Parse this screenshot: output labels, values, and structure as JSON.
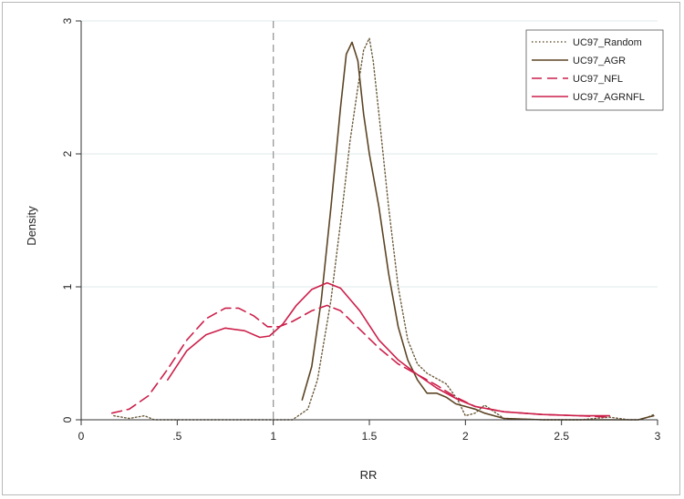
{
  "chart_data": {
    "type": "line",
    "xlabel": "RR",
    "ylabel": "Density",
    "xlim": [
      0,
      3
    ],
    "ylim": [
      0,
      3
    ],
    "x_ticks": [
      {
        "value": 0,
        "label": "0"
      },
      {
        "value": 0.5,
        "label": ".5"
      },
      {
        "value": 1,
        "label": "1"
      },
      {
        "value": 1.5,
        "label": "1.5"
      },
      {
        "value": 2,
        "label": "2"
      },
      {
        "value": 2.5,
        "label": "2.5"
      },
      {
        "value": 3,
        "label": "3"
      }
    ],
    "y_ticks": [
      {
        "value": 0,
        "label": "0"
      },
      {
        "value": 1,
        "label": "1"
      },
      {
        "value": 2,
        "label": "2"
      },
      {
        "value": 3,
        "label": "3"
      }
    ],
    "grid": "horizontal",
    "reference_line": {
      "x": 1,
      "style": "dashed",
      "color": "#999999"
    },
    "legend_position": "top-right",
    "series": [
      {
        "name": "UC97_Random",
        "color": "#6b5a3a",
        "style": "dotted",
        "points": [
          [
            0.17,
            0.03
          ],
          [
            0.25,
            0.01
          ],
          [
            0.33,
            0.03
          ],
          [
            0.38,
            0.0
          ],
          [
            1.1,
            0.0
          ],
          [
            1.18,
            0.08
          ],
          [
            1.23,
            0.3
          ],
          [
            1.3,
            0.9
          ],
          [
            1.36,
            1.6
          ],
          [
            1.4,
            2.1
          ],
          [
            1.44,
            2.5
          ],
          [
            1.47,
            2.78
          ],
          [
            1.5,
            2.87
          ],
          [
            1.52,
            2.7
          ],
          [
            1.55,
            2.3
          ],
          [
            1.6,
            1.6
          ],
          [
            1.65,
            1.0
          ],
          [
            1.7,
            0.6
          ],
          [
            1.75,
            0.42
          ],
          [
            1.8,
            0.35
          ],
          [
            1.9,
            0.27
          ],
          [
            1.96,
            0.15
          ],
          [
            2.0,
            0.03
          ],
          [
            2.05,
            0.05
          ],
          [
            2.1,
            0.11
          ],
          [
            2.15,
            0.06
          ],
          [
            2.2,
            0.01
          ],
          [
            2.4,
            0.0
          ],
          [
            2.6,
            0.0
          ],
          [
            2.75,
            0.02
          ],
          [
            2.85,
            0.0
          ],
          [
            2.9,
            0.0
          ],
          [
            2.95,
            0.02
          ],
          [
            2.98,
            0.04
          ]
        ]
      },
      {
        "name": "UC97_AGR",
        "color": "#5c4424",
        "style": "solid",
        "points": [
          [
            1.15,
            0.15
          ],
          [
            1.2,
            0.4
          ],
          [
            1.25,
            0.9
          ],
          [
            1.3,
            1.6
          ],
          [
            1.35,
            2.35
          ],
          [
            1.38,
            2.75
          ],
          [
            1.41,
            2.84
          ],
          [
            1.44,
            2.7
          ],
          [
            1.47,
            2.3
          ],
          [
            1.5,
            2.0
          ],
          [
            1.55,
            1.6
          ],
          [
            1.6,
            1.1
          ],
          [
            1.65,
            0.7
          ],
          [
            1.7,
            0.45
          ],
          [
            1.75,
            0.3
          ],
          [
            1.8,
            0.2
          ],
          [
            1.85,
            0.2
          ],
          [
            1.9,
            0.17
          ],
          [
            1.95,
            0.12
          ],
          [
            2.0,
            0.1
          ],
          [
            2.05,
            0.08
          ],
          [
            2.1,
            0.05
          ],
          [
            2.15,
            0.03
          ],
          [
            2.2,
            0.01
          ],
          [
            2.4,
            0.0
          ],
          [
            2.6,
            0.0
          ],
          [
            2.8,
            0.0
          ],
          [
            2.9,
            0.0
          ],
          [
            2.95,
            0.02
          ],
          [
            2.98,
            0.03
          ]
        ]
      },
      {
        "name": "UC97_NFL",
        "color": "#cc1f4a",
        "style": "dashed",
        "points": [
          [
            0.16,
            0.05
          ],
          [
            0.25,
            0.08
          ],
          [
            0.35,
            0.18
          ],
          [
            0.45,
            0.38
          ],
          [
            0.55,
            0.6
          ],
          [
            0.65,
            0.76
          ],
          [
            0.75,
            0.84
          ],
          [
            0.82,
            0.84
          ],
          [
            0.9,
            0.78
          ],
          [
            0.97,
            0.7
          ],
          [
            1.03,
            0.7
          ],
          [
            1.1,
            0.74
          ],
          [
            1.2,
            0.82
          ],
          [
            1.28,
            0.86
          ],
          [
            1.35,
            0.82
          ],
          [
            1.45,
            0.68
          ],
          [
            1.55,
            0.54
          ],
          [
            1.65,
            0.42
          ],
          [
            1.75,
            0.34
          ],
          [
            1.85,
            0.26
          ],
          [
            1.95,
            0.17
          ],
          [
            2.05,
            0.1
          ],
          [
            2.2,
            0.06
          ],
          [
            2.4,
            0.04
          ],
          [
            2.6,
            0.03
          ],
          [
            2.75,
            0.02
          ]
        ]
      },
      {
        "name": "UC97_AGRNFL",
        "color": "#cc1f4a",
        "style": "solid",
        "points": [
          [
            0.45,
            0.3
          ],
          [
            0.55,
            0.52
          ],
          [
            0.65,
            0.64
          ],
          [
            0.75,
            0.69
          ],
          [
            0.85,
            0.67
          ],
          [
            0.93,
            0.62
          ],
          [
            0.98,
            0.63
          ],
          [
            1.05,
            0.72
          ],
          [
            1.12,
            0.86
          ],
          [
            1.2,
            0.98
          ],
          [
            1.28,
            1.03
          ],
          [
            1.35,
            0.99
          ],
          [
            1.45,
            0.82
          ],
          [
            1.55,
            0.6
          ],
          [
            1.65,
            0.45
          ],
          [
            1.75,
            0.34
          ],
          [
            1.85,
            0.24
          ],
          [
            1.95,
            0.16
          ],
          [
            2.05,
            0.1
          ],
          [
            2.2,
            0.06
          ],
          [
            2.4,
            0.04
          ],
          [
            2.6,
            0.03
          ],
          [
            2.75,
            0.03
          ]
        ]
      }
    ]
  }
}
